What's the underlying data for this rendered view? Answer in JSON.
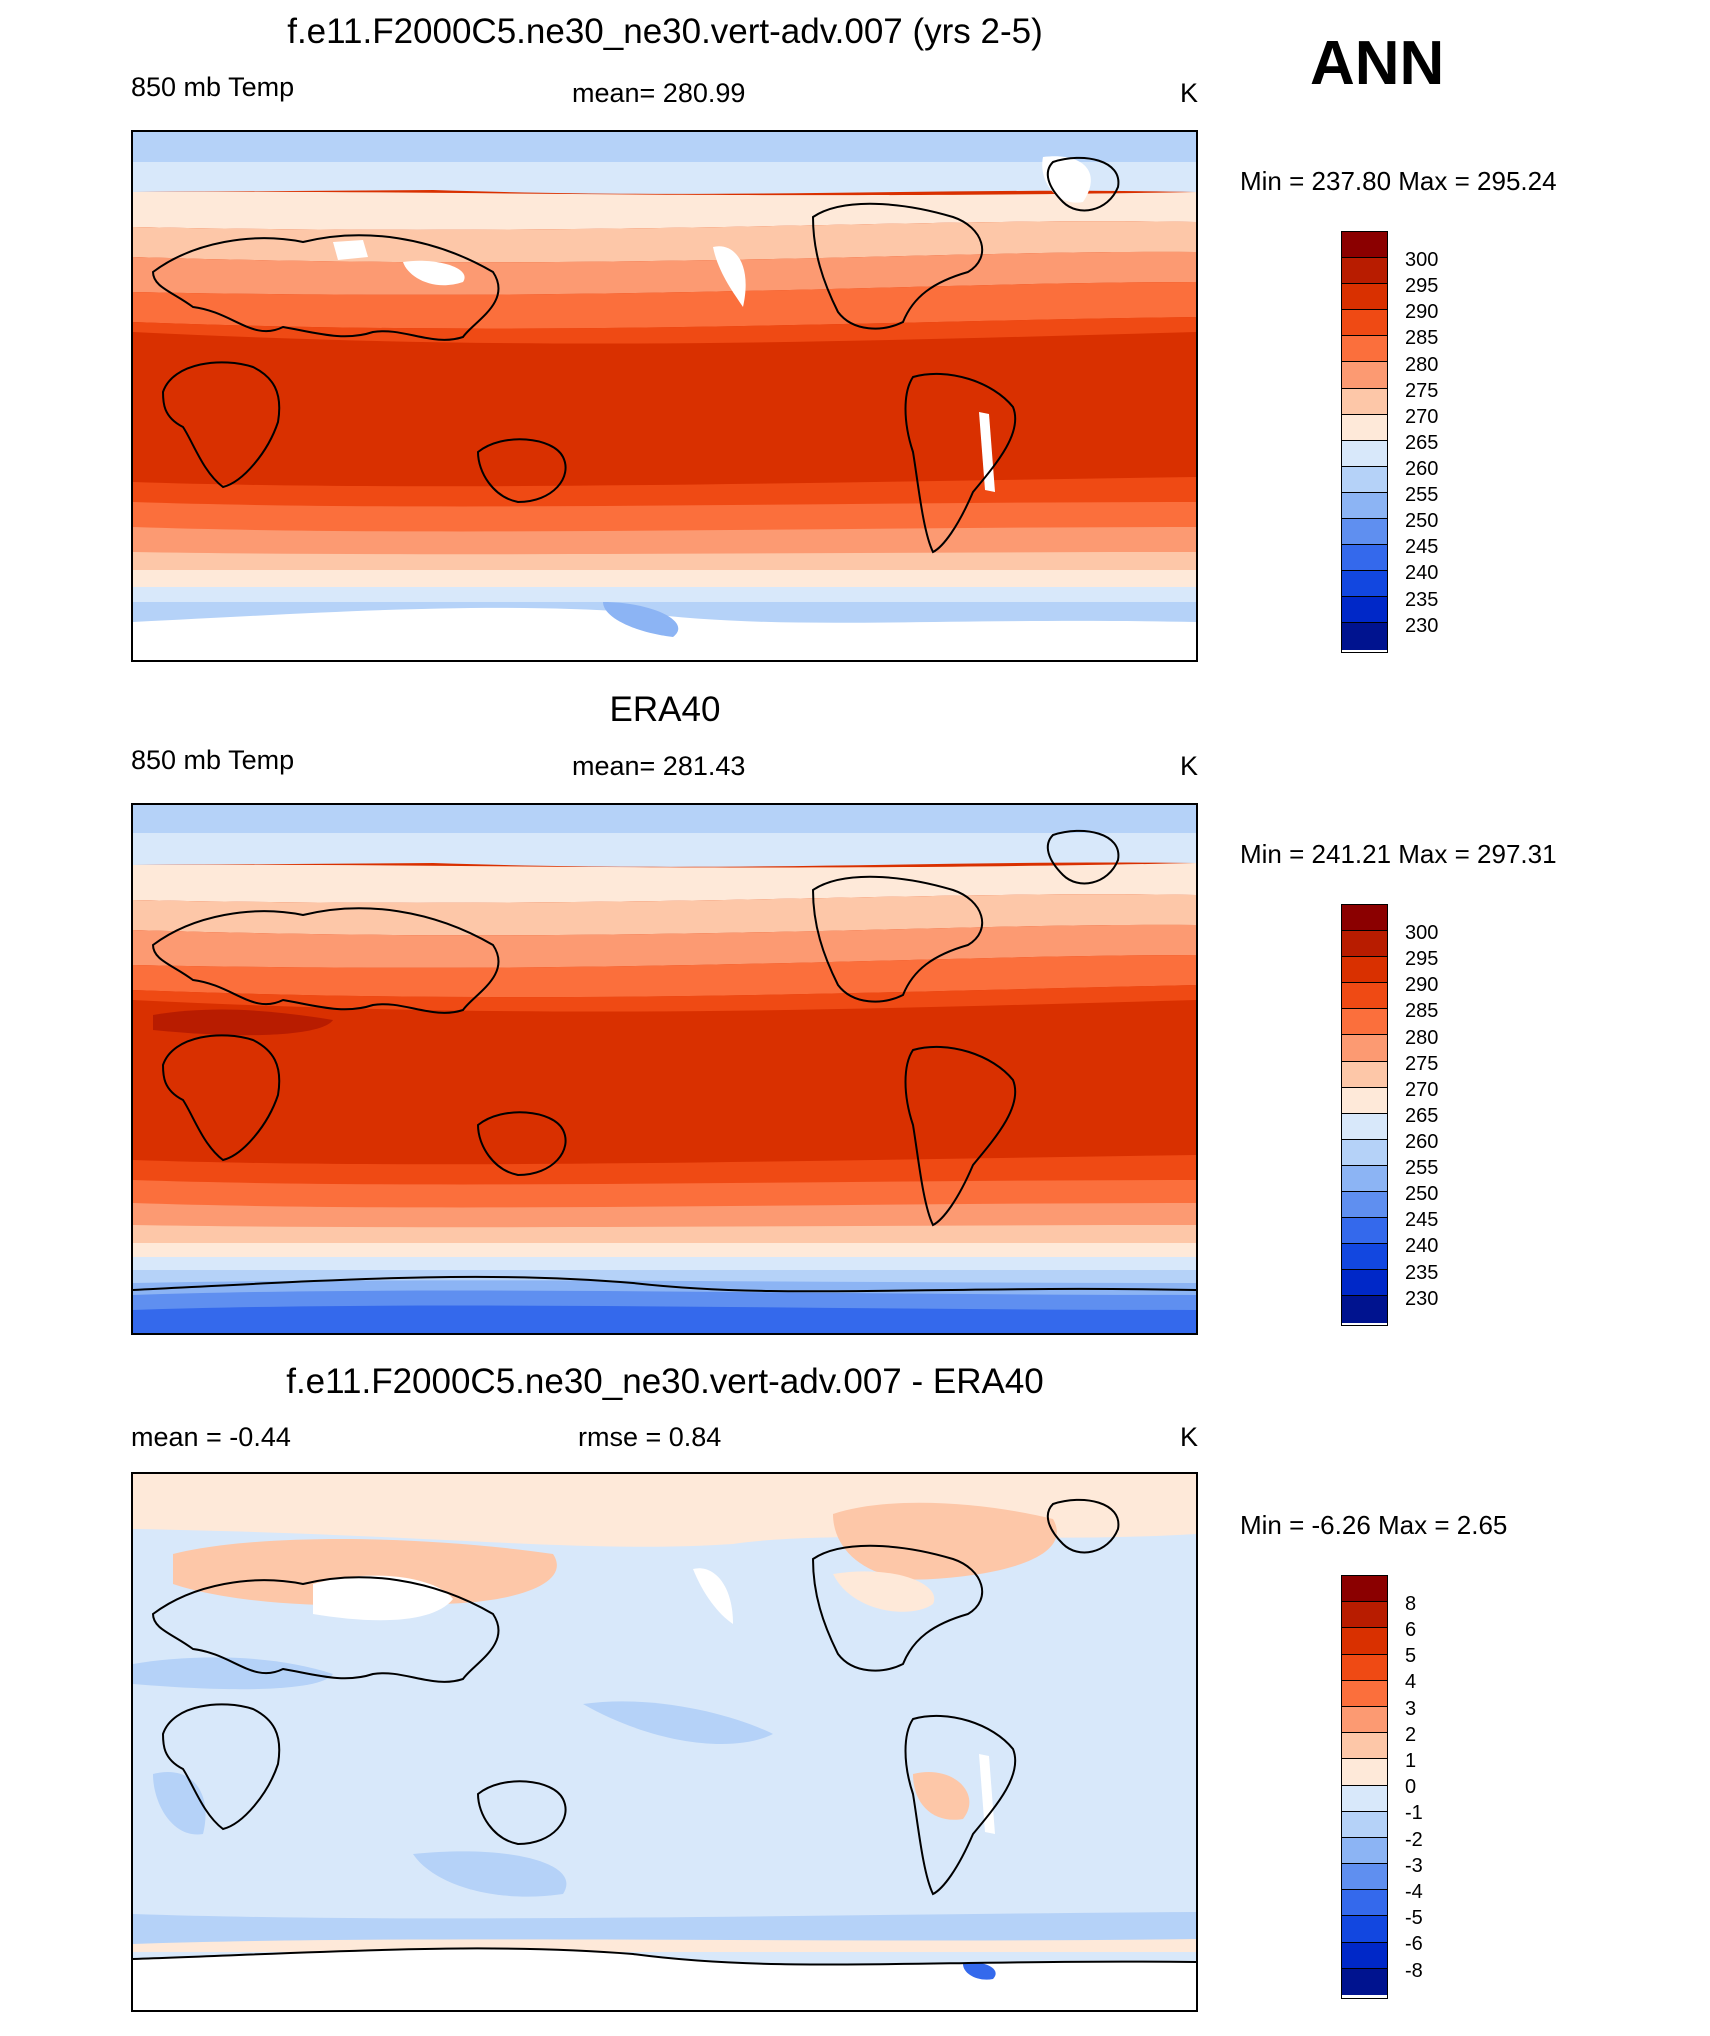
{
  "season": "ANN",
  "panels": [
    {
      "title": "f.e11.F2000C5.ne30_ne30.vert-adv.007 (yrs 2-5)",
      "left_label": "850 mb Temp",
      "center_label": "mean= 280.99",
      "right_label": "K",
      "minmax": "Min = 237.80 Max = 295.24"
    },
    {
      "title": "ERA40",
      "left_label": "850 mb Temp",
      "center_label": "mean= 281.43",
      "right_label": "K",
      "minmax": "Min = 241.21 Max = 297.31"
    },
    {
      "title": "f.e11.F2000C5.ne30_ne30.vert-adv.007 - ERA40",
      "left_label": "mean =  -0.44",
      "center_label": "rmse =   0.84",
      "right_label": "K",
      "minmax": "Min =  -6.26 Max =   2.65"
    }
  ],
  "colorbars": {
    "absolute": {
      "labels": [
        "300",
        "295",
        "290",
        "285",
        "280",
        "275",
        "270",
        "265",
        "260",
        "255",
        "250",
        "245",
        "240",
        "235",
        "230"
      ],
      "colors": [
        "#8b0000",
        "#b81c00",
        "#d93000",
        "#ef4a14",
        "#fb6f3c",
        "#fc9a72",
        "#fdc7a8",
        "#fee9d9",
        "#d8e8fa",
        "#b5d2f8",
        "#8cb4f4",
        "#5f8ff0",
        "#3469ec",
        "#1247e0",
        "#0028c8",
        "#00138f"
      ]
    },
    "difference": {
      "labels": [
        "8",
        "6",
        "5",
        "4",
        "3",
        "2",
        "1",
        "0",
        "-1",
        "-2",
        "-3",
        "-4",
        "-5",
        "-6",
        "-8"
      ],
      "colors": [
        "#8b0000",
        "#b81c00",
        "#d93000",
        "#ef4a14",
        "#fb6f3c",
        "#fc9a72",
        "#fdc7a8",
        "#fee9d9",
        "#d8e8fa",
        "#b5d2f8",
        "#8cb4f4",
        "#5f8ff0",
        "#3469ec",
        "#1247e0",
        "#0028c8",
        "#00138f"
      ]
    }
  }
}
